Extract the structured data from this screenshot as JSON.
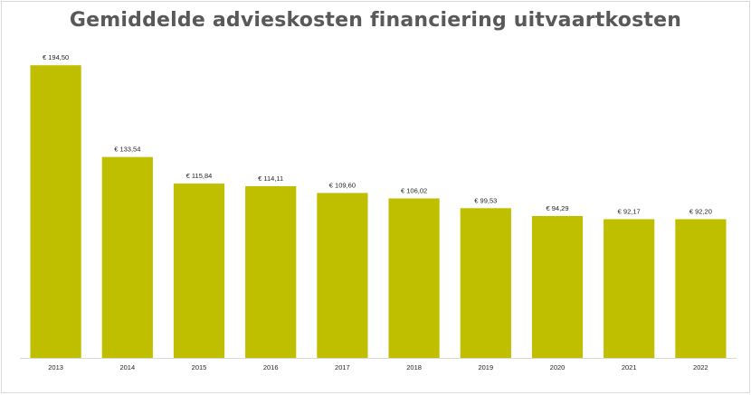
{
  "chart_data": {
    "type": "bar",
    "title": "Gemiddelde advieskosten financiering uitvaartkosten",
    "xlabel": "",
    "ylabel": "",
    "categories": [
      "2013",
      "2014",
      "2015",
      "2016",
      "2017",
      "2018",
      "2019",
      "2020",
      "2021",
      "2022"
    ],
    "values": [
      194.5,
      133.54,
      115.84,
      114.11,
      109.6,
      106.02,
      99.53,
      94.29,
      92.17,
      92.2
    ],
    "value_labels": [
      "€ 194,50",
      "€ 133,54",
      "€ 115,84",
      "€ 114,11",
      "€ 109,60",
      "€ 106,02",
      "€ 99,53",
      "€ 94,29",
      "€ 92,17",
      "€ 92,20"
    ],
    "ylim": [
      0,
      200
    ],
    "grid": false,
    "legend": "none",
    "bar_color": "#bfbf00",
    "axis_color": "#d9d9d9"
  }
}
